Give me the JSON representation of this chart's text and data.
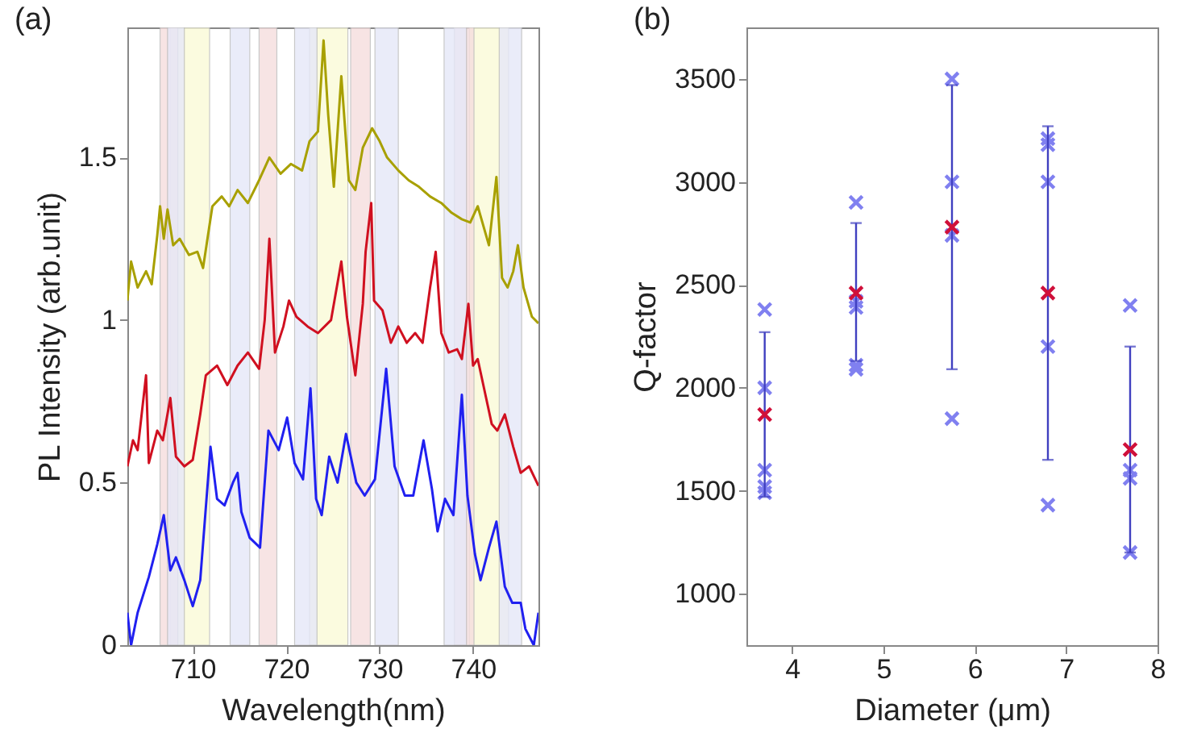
{
  "chart_data": [
    {
      "type": "line",
      "title": "(a)",
      "xlabel": "Wavelength(nm)",
      "ylabel": "PL Intensity (arb.unit)",
      "xlim": [
        703,
        747
      ],
      "ylim": [
        0,
        1.9
      ],
      "xticks": [
        710,
        720,
        730,
        740
      ],
      "yticks": [
        0,
        0.5,
        1,
        1.5
      ],
      "bands": [
        {
          "axis": "x",
          "from": 707.6,
          "to": 711.8,
          "color": "#fbfbd8"
        },
        {
          "axis": "x",
          "from": 722.5,
          "to": 726.6,
          "color": "#fbfbd8"
        },
        {
          "axis": "x",
          "from": 739.6,
          "to": 743.8,
          "color": "#fbfbd8"
        },
        {
          "axis": "x",
          "from": 706.5,
          "to": 708.4,
          "color": "#f6dede"
        },
        {
          "axis": "x",
          "from": 717.1,
          "to": 719.0,
          "color": "#f6dede"
        },
        {
          "axis": "x",
          "from": 726.9,
          "to": 729.0,
          "color": "#f6dede"
        },
        {
          "axis": "x",
          "from": 738.0,
          "to": 740.1,
          "color": "#f6dede"
        },
        {
          "axis": "x",
          "from": 707.3,
          "to": 709.1,
          "color": "#e6e8f8"
        },
        {
          "axis": "x",
          "from": 714.0,
          "to": 716.1,
          "color": "#e6e8f8"
        },
        {
          "axis": "x",
          "from": 720.9,
          "to": 723.3,
          "color": "#e6e8f8"
        },
        {
          "axis": "x",
          "from": 729.5,
          "to": 732.0,
          "color": "#e6e8f8"
        },
        {
          "axis": "x",
          "from": 736.9,
          "to": 739.3,
          "color": "#e6e8f8"
        },
        {
          "axis": "x",
          "from": 742.8,
          "to": 745.2,
          "color": "#e6e8f8"
        }
      ],
      "series": [
        {
          "color": "#a8a000",
          "x": [
            703.0,
            703.4,
            704.1,
            705.0,
            705.6,
            706.2,
            706.5,
            706.9,
            707.3,
            707.9,
            708.6,
            709.6,
            710.5,
            711.1,
            712.1,
            713.1,
            713.9,
            714.8,
            715.9,
            717.1,
            718.2,
            719.4,
            720.5,
            721.7,
            722.5,
            723.4,
            724.0,
            724.5,
            725.1,
            725.9,
            726.7,
            727.4,
            728.2,
            729.2,
            730.0,
            730.8,
            732.0,
            733.1,
            734.2,
            735.4,
            736.6,
            737.7,
            738.8,
            739.7,
            740.5,
            741.7,
            742.5,
            743.1,
            743.7,
            744.3,
            744.8,
            745.4,
            746.3,
            747.0
          ],
          "values": [
            1.06,
            1.18,
            1.1,
            1.15,
            1.11,
            1.26,
            1.35,
            1.25,
            1.34,
            1.23,
            1.25,
            1.2,
            1.21,
            1.16,
            1.35,
            1.38,
            1.35,
            1.4,
            1.36,
            1.43,
            1.5,
            1.45,
            1.48,
            1.46,
            1.55,
            1.58,
            1.86,
            1.63,
            1.41,
            1.75,
            1.43,
            1.4,
            1.53,
            1.59,
            1.55,
            1.5,
            1.46,
            1.43,
            1.41,
            1.38,
            1.36,
            1.33,
            1.31,
            1.3,
            1.35,
            1.23,
            1.44,
            1.13,
            1.1,
            1.15,
            1.23,
            1.1,
            1.01,
            0.99
          ]
        },
        {
          "color": "#d01020",
          "x": [
            703.0,
            703.6,
            704.1,
            705.0,
            705.3,
            706.2,
            706.8,
            707.6,
            708.2,
            709.1,
            710.0,
            710.8,
            711.4,
            712.6,
            713.7,
            714.8,
            715.9,
            717.1,
            717.7,
            718.2,
            718.8,
            719.7,
            720.3,
            721.1,
            722.3,
            723.4,
            724.8,
            725.9,
            726.5,
            727.4,
            728.2,
            728.5,
            729.1,
            729.4,
            730.3,
            731.2,
            732.0,
            732.9,
            733.8,
            734.6,
            735.4,
            736.0,
            736.6,
            737.4,
            738.3,
            738.8,
            739.5,
            740.0,
            740.5,
            741.1,
            742.0,
            742.6,
            743.4,
            744.3,
            745.1,
            746.0,
            747.0
          ],
          "values": [
            0.55,
            0.63,
            0.6,
            0.83,
            0.56,
            0.66,
            0.63,
            0.76,
            0.58,
            0.55,
            0.57,
            0.71,
            0.83,
            0.86,
            0.8,
            0.86,
            0.9,
            0.85,
            1.0,
            1.25,
            0.9,
            0.98,
            1.06,
            1.01,
            0.98,
            0.96,
            1.0,
            1.18,
            1.01,
            0.83,
            1.05,
            1.21,
            1.36,
            1.06,
            1.03,
            0.93,
            0.98,
            0.93,
            0.96,
            0.93,
            1.1,
            1.21,
            0.96,
            0.9,
            0.91,
            0.88,
            1.05,
            0.86,
            0.88,
            0.8,
            0.68,
            0.66,
            0.71,
            0.61,
            0.53,
            0.55,
            0.49
          ]
        },
        {
          "color": "#2020f0",
          "x": [
            703.0,
            703.4,
            704.1,
            705.3,
            706.2,
            706.9,
            707.6,
            708.2,
            709.1,
            710.0,
            710.8,
            711.9,
            712.6,
            713.4,
            714.3,
            714.8,
            715.2,
            716.1,
            717.2,
            718.1,
            719.2,
            720.1,
            720.9,
            721.8,
            722.6,
            723.2,
            723.8,
            724.6,
            725.5,
            726.4,
            727.5,
            728.4,
            729.5,
            730.7,
            731.6,
            732.7,
            733.6,
            734.7,
            735.6,
            736.2,
            737.0,
            737.9,
            738.8,
            739.4,
            740.2,
            740.8,
            741.7,
            742.5,
            743.4,
            744.2,
            745.1,
            745.6,
            746.5,
            747.0
          ],
          "values": [
            0.1,
            0.0,
            0.1,
            0.21,
            0.31,
            0.4,
            0.23,
            0.27,
            0.2,
            0.12,
            0.2,
            0.61,
            0.45,
            0.43,
            0.5,
            0.53,
            0.41,
            0.33,
            0.3,
            0.66,
            0.6,
            0.7,
            0.56,
            0.51,
            0.79,
            0.45,
            0.4,
            0.58,
            0.5,
            0.65,
            0.5,
            0.46,
            0.51,
            0.85,
            0.55,
            0.46,
            0.46,
            0.63,
            0.48,
            0.35,
            0.45,
            0.4,
            0.77,
            0.46,
            0.28,
            0.2,
            0.3,
            0.38,
            0.18,
            0.13,
            0.13,
            0.05,
            0.0,
            0.1
          ]
        }
      ]
    },
    {
      "type": "scatter",
      "title": "(b)",
      "xlabel": "Diameter (μm)",
      "ylabel": "Q-factor",
      "xlim": [
        3.5,
        8
      ],
      "ylim": [
        750,
        3750
      ],
      "xticks": [
        4,
        5,
        6,
        7,
        8
      ],
      "yticks": [
        1000,
        1500,
        2000,
        2500,
        3000,
        3500
      ],
      "marker": "cross",
      "series": [
        {
          "color": "#8080f0",
          "x": [
            3.7,
            3.7,
            3.7,
            3.7,
            3.7,
            4.7,
            4.7,
            4.7,
            4.7,
            4.7,
            5.75,
            5.75,
            5.75,
            5.75,
            6.8,
            6.8,
            6.8,
            6.8,
            6.8,
            7.7,
            7.7,
            7.7,
            7.7
          ],
          "values": [
            2380,
            2000,
            1600,
            1520,
            1490,
            2900,
            2420,
            2390,
            2110,
            2090,
            3500,
            3000,
            2740,
            1850,
            3210,
            3180,
            3000,
            2200,
            1430,
            2400,
            1600,
            1560,
            1200
          ]
        },
        {
          "color": "#d0103a",
          "x": [
            3.7,
            4.7,
            5.75,
            6.8,
            7.7
          ],
          "values": [
            1870,
            2460,
            2780,
            2460,
            1700
          ],
          "errors": [
            [
              1470,
              2270
            ],
            [
              2130,
              2800
            ],
            [
              2090,
              3470
            ],
            [
              1650,
              3270
            ],
            [
              1200,
              2200
            ]
          ]
        }
      ]
    }
  ]
}
